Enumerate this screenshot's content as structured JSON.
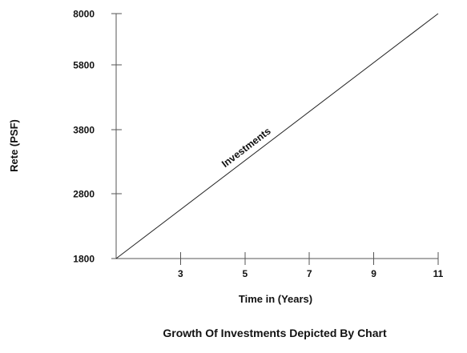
{
  "chart_data": {
    "type": "line",
    "title": "Growth Of Investments Depicted By Chart",
    "xlabel": "Time in (Years)",
    "ylabel": "Rete (PSF)",
    "x_ticks": [
      3,
      5,
      7,
      9,
      11
    ],
    "y_ticks": [
      1800,
      2800,
      3800,
      5800,
      8000
    ],
    "grid": false,
    "series": [
      {
        "name": "Investments",
        "x": [
          1,
          11
        ],
        "y": [
          1800,
          8000
        ]
      }
    ]
  }
}
